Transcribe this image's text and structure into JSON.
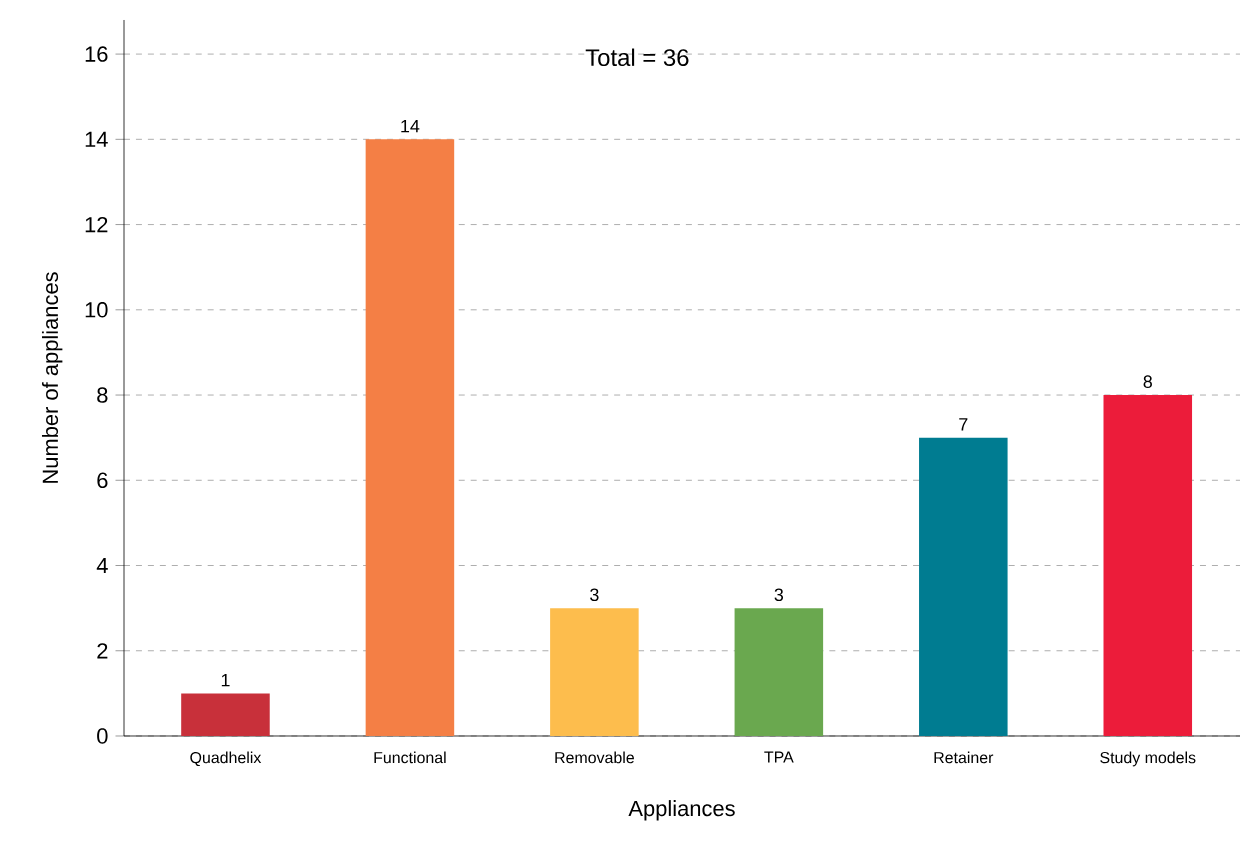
{
  "chart_data": {
    "type": "bar",
    "xlabel": "Appliances",
    "ylabel": "Number of appliances",
    "categories": [
      "Quadhelix",
      "Functional",
      "Removable",
      "TPA",
      "Retainer",
      "Study models"
    ],
    "values": [
      1,
      14,
      3,
      3,
      7,
      8
    ],
    "colors": [
      "#c8303a",
      "#f47f45",
      "#fdbd4d",
      "#6aa84f",
      "#007c91",
      "#ec1c3a"
    ],
    "ylim": [
      0,
      16.8
    ],
    "yticks": [
      0,
      2,
      4,
      6,
      8,
      10,
      12,
      14,
      16
    ],
    "grid": "y",
    "data_labels": true,
    "annotations": [
      "Total = 36"
    ]
  }
}
